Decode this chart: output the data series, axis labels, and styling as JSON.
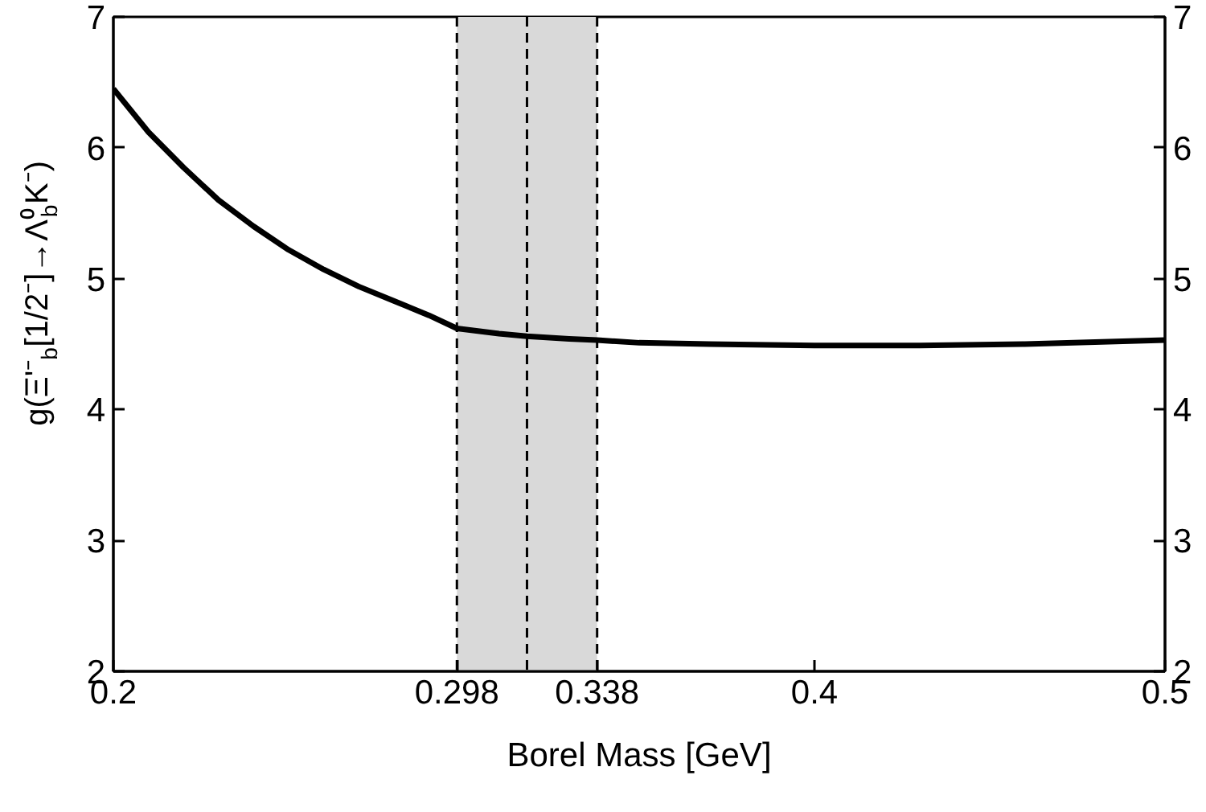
{
  "chart_data": {
    "type": "line",
    "xlabel": "Borel Mass [GeV]",
    "ylabel": "g(Ξ'⁻$_{b}$[1/2⁻]→Λ⁰$_{b}$K⁻)",
    "x": [
      0.2,
      0.21,
      0.22,
      0.23,
      0.24,
      0.25,
      0.26,
      0.27,
      0.28,
      0.29,
      0.298,
      0.31,
      0.318,
      0.33,
      0.338,
      0.35,
      0.37,
      0.4,
      0.43,
      0.46,
      0.5
    ],
    "series": [
      {
        "color": "#000000",
        "values": [
          6.45,
          6.12,
          5.85,
          5.6,
          5.4,
          5.22,
          5.07,
          4.94,
          4.83,
          4.72,
          4.62,
          4.58,
          4.56,
          4.54,
          4.53,
          4.51,
          4.5,
          4.49,
          4.49,
          4.5,
          4.53
        ]
      }
    ],
    "xlim": [
      0.2,
      0.5
    ],
    "xticks": [
      0.2,
      0.298,
      0.338,
      0.4,
      0.5
    ],
    "ylim": [
      2,
      7
    ],
    "yticks": [
      2,
      3,
      4,
      5,
      6,
      7
    ],
    "y2lim": [
      2,
      7
    ],
    "y2ticks": [
      2,
      3,
      4,
      5,
      6,
      7
    ],
    "bands": [
      {
        "axis": "x",
        "from": 0.298,
        "to": 0.338,
        "color": "#d9d9d9"
      }
    ],
    "ref_lines": [
      {
        "axis": "x",
        "value": 0.298,
        "line_style": "dashed",
        "color": "#000000"
      },
      {
        "axis": "x",
        "value": 0.318,
        "line_style": "dashed",
        "color": "#000000"
      },
      {
        "axis": "x",
        "value": 0.338,
        "line_style": "dashed",
        "color": "#000000"
      }
    ],
    "grid": false,
    "line_style": "solid",
    "marker": "none"
  }
}
